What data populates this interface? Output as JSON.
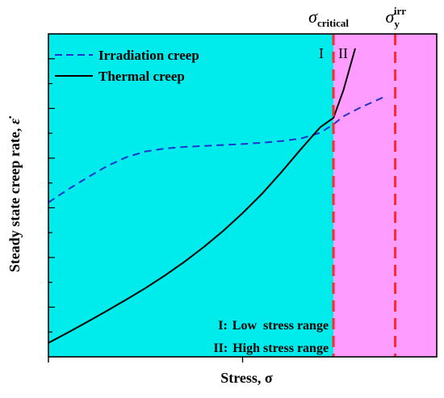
{
  "chart_data": {
    "type": "line",
    "xlabel": "Stress, σ",
    "ylabel": "Steady state creep rate, ε̇",
    "ylabel_text": "Steady state creep rate, ",
    "ylabel_symbol": "ε̇",
    "xlim": [
      0,
      1
    ],
    "ylim": [
      0,
      1
    ],
    "grid": false,
    "legend_position": "top-left",
    "colors": {
      "region_low": "#00ecec",
      "region_high": "#ff9cff",
      "irradiation": "#2233cc",
      "thermal": "#000000",
      "boundary": "#ff2a2a"
    },
    "regions": [
      {
        "label": "I",
        "x_start": 0.0,
        "x_end": 0.734
      },
      {
        "label": "II",
        "x_start": 0.734,
        "x_end": 1.0
      }
    ],
    "vertical_markers": [
      {
        "symbol": "σ",
        "subscript": "critical",
        "superscript": "",
        "x": 0.734
      },
      {
        "symbol": "σ",
        "subscript": "y",
        "superscript": "irr",
        "x": 0.893
      }
    ],
    "series": [
      {
        "name": "Irradiation creep",
        "style": "dashed",
        "x": [
          0.0,
          0.05,
          0.1,
          0.15,
          0.2,
          0.25,
          0.3,
          0.35,
          0.4,
          0.45,
          0.5,
          0.55,
          0.6,
          0.65,
          0.7,
          0.734,
          0.76,
          0.8,
          0.85,
          0.87
        ],
        "y": [
          0.478,
          0.518,
          0.555,
          0.59,
          0.618,
          0.636,
          0.645,
          0.65,
          0.653,
          0.656,
          0.659,
          0.663,
          0.668,
          0.676,
          0.694,
          0.72,
          0.745,
          0.77,
          0.797,
          0.808
        ]
      },
      {
        "name": "Thermal creep",
        "style": "solid",
        "x": [
          0.0,
          0.05,
          0.1,
          0.15,
          0.2,
          0.25,
          0.3,
          0.35,
          0.4,
          0.45,
          0.5,
          0.55,
          0.6,
          0.65,
          0.7,
          0.734,
          0.76,
          0.79
        ],
        "y": [
          0.043,
          0.075,
          0.108,
          0.142,
          0.177,
          0.213,
          0.252,
          0.294,
          0.34,
          0.39,
          0.445,
          0.505,
          0.572,
          0.643,
          0.711,
          0.74,
          0.827,
          0.955
        ]
      }
    ],
    "annotations": [
      {
        "key": "I:",
        "text": "Low  stress range"
      },
      {
        "key": "II:",
        "text": "High stress range"
      }
    ]
  }
}
